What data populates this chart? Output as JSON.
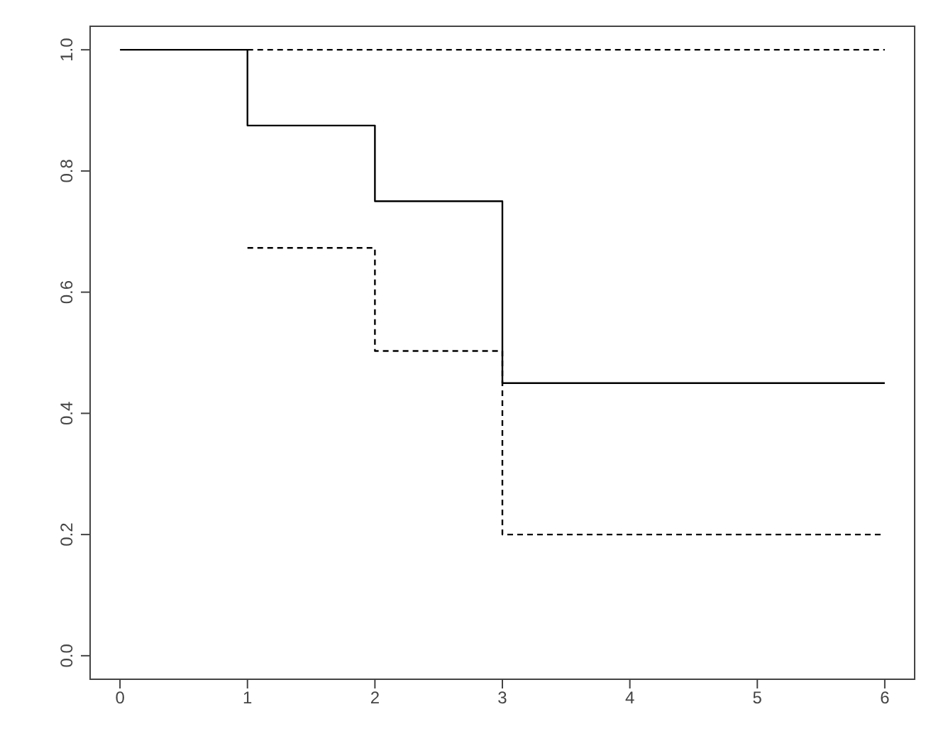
{
  "chart_data": {
    "type": "step",
    "xlim": [
      -0.24,
      6.24
    ],
    "xticks": [
      0,
      1,
      2,
      3,
      4,
      5,
      6
    ],
    "ylim": [
      -0.04,
      1.04
    ],
    "yticks": [
      {
        "value": 0,
        "label": "0.0"
      },
      {
        "value": 0.2,
        "label": "0.2"
      },
      {
        "value": 0.4,
        "label": "0.4"
      },
      {
        "value": 0.6,
        "label": "0.6"
      },
      {
        "value": 0.8,
        "label": "0.8"
      },
      {
        "value": 1,
        "label": "1.0"
      }
    ],
    "grid": false,
    "legend": false,
    "marker": "none",
    "series": [
      {
        "color": "#000000",
        "line_style": "solid",
        "x": [
          0,
          1,
          2,
          3,
          6
        ],
        "values": [
          1,
          0.875,
          0.75,
          0.45,
          0.45
        ]
      },
      {
        "color": "#000000",
        "line_style": "dashed",
        "x": [
          1,
          6
        ],
        "values": [
          1,
          1
        ]
      },
      {
        "color": "#000000",
        "line_style": "dashed",
        "x": [
          1,
          2,
          3,
          6
        ],
        "values": [
          0.673,
          0.503,
          0.2,
          0.2
        ]
      }
    ]
  }
}
